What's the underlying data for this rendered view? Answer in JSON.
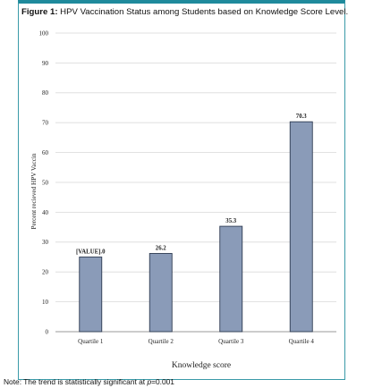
{
  "caption": {
    "label": "Figure 1:",
    "text": " HPV Vaccination Status among Students based on Knowledge Score Level."
  },
  "note": {
    "prefix": "Note: The trend is statistically significant at ",
    "italic": "p",
    "suffix": "=0.001"
  },
  "colors": {
    "bar": "#8a9bb8",
    "bar_stroke": "#2e3b52",
    "grid": "#d9d9d9",
    "frame": "#1f8a9c"
  },
  "chart_data": {
    "type": "bar",
    "categories": [
      "Quartile 1",
      "Quartile 2",
      "Quartile 3",
      "Quartile 4"
    ],
    "values": [
      25.0,
      26.2,
      35.3,
      70.3
    ],
    "data_labels": [
      "[VALUE].0",
      "26.2",
      "35.3",
      "70.3"
    ],
    "title": "",
    "xlabel": "Knowledge score",
    "ylabel": "Percent recieved  HPV Vaccin",
    "ylim": [
      0,
      100
    ],
    "yticks": [
      0,
      10,
      20,
      30,
      40,
      50,
      60,
      70,
      80,
      90,
      100
    ],
    "grid": true,
    "legend": "none"
  }
}
